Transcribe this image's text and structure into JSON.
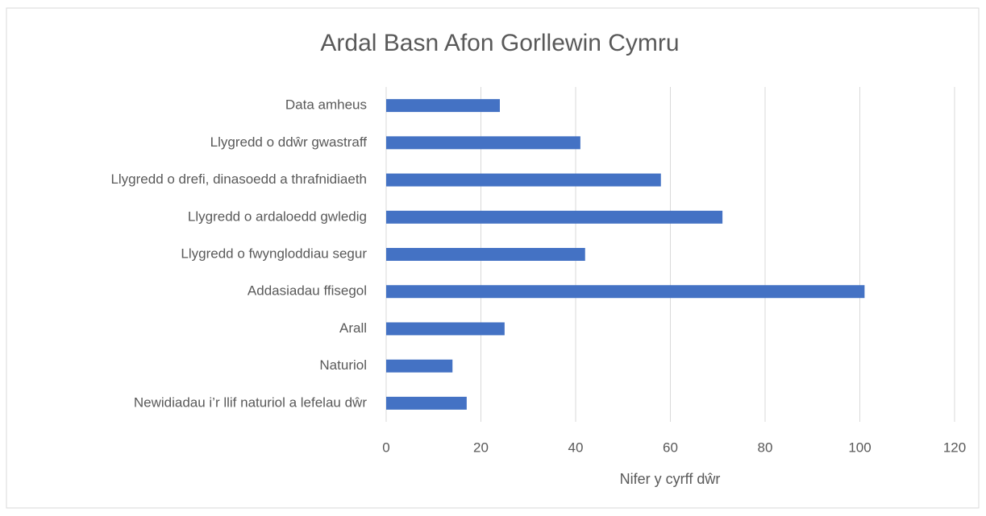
{
  "chart_data": {
    "type": "bar",
    "orientation": "horizontal",
    "title": "Ardal Basn Afon Gorllewin Cymru",
    "x_label": "Nifer y cyrff dŵr",
    "categories": [
      "Data amheus",
      "Llygredd o ddŵr gwastraff",
      "Llygredd o drefi, dinasoedd a thrafnidiaeth",
      "Llygredd o ardaloedd gwledig",
      "Llygredd o fwyngloddiau segur",
      "Addasiadau ffisegol",
      "Arall",
      "Naturiol",
      "Newidiadau i’r llif naturiol a lefelau dŵr"
    ],
    "values": [
      24,
      41,
      58,
      71,
      42,
      101,
      25,
      14,
      17
    ],
    "color": "#4472c4",
    "xlim": [
      0,
      120
    ],
    "xticks": [
      0,
      20,
      40,
      60,
      80,
      100,
      120
    ],
    "grid": true
  }
}
